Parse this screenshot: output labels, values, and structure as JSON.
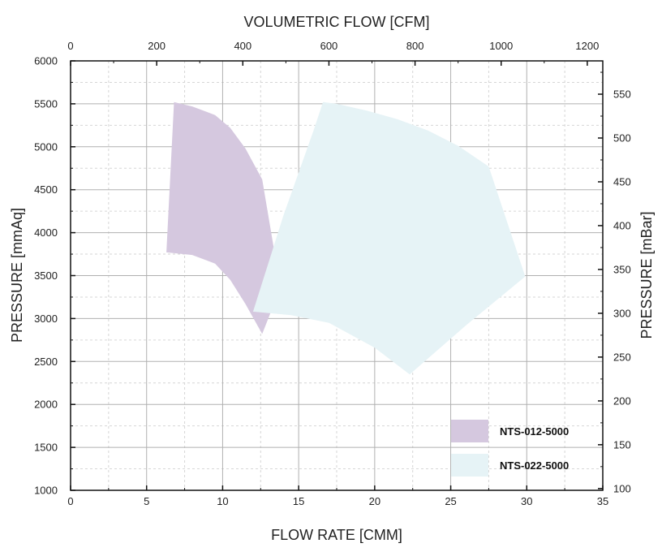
{
  "chart_data": {
    "type": "area",
    "xlabel": "FLOW RATE [CMM]",
    "ylabel": "PRESSURE [mmAq]",
    "x2label": "VOLUMETRIC FLOW [CFM]",
    "y2label": "PRESSURE [mBar]",
    "xlim": [
      0,
      35
    ],
    "ylim": [
      1000,
      6000
    ],
    "x2lim": [
      0,
      1236
    ],
    "y2lim": [
      98,
      588
    ],
    "xticks": [
      "0",
      "5",
      "10",
      "15",
      "20",
      "25",
      "30",
      "35"
    ],
    "yticks": [
      "1000",
      "1500",
      "2000",
      "2500",
      "3000",
      "3500",
      "4000",
      "4500",
      "5000",
      "5500",
      "6000"
    ],
    "x2ticks": [
      "0",
      "200",
      "400",
      "600",
      "800",
      "1000",
      "1200"
    ],
    "y2ticks": [
      "100",
      "150",
      "200",
      "250",
      "300",
      "350",
      "400",
      "450",
      "500",
      "550"
    ],
    "grid": true,
    "legend_position": "bottom-right",
    "series": [
      {
        "name": "NTS-012-5000",
        "color": "#d5c8df",
        "x": [
          6.8,
          8.0,
          9.5,
          10.5,
          11.5,
          12.6,
          13.8,
          12.6,
          11.5,
          10.5,
          9.5,
          8.0,
          6.3
        ],
        "y": [
          5520,
          5470,
          5370,
          5220,
          4980,
          4620,
          3360,
          2820,
          3170,
          3450,
          3640,
          3740,
          3770
        ]
      },
      {
        "name": "NTS-022-5000",
        "color": "#e6f3f6",
        "x": [
          16.6,
          17.5,
          19.5,
          21.5,
          23.5,
          25.5,
          27.5,
          29.9,
          26.0,
          22.3,
          20.0,
          17.0,
          14.5,
          12.0,
          14.0,
          16.0
        ],
        "y": [
          5520,
          5500,
          5420,
          5320,
          5190,
          5010,
          4770,
          3490,
          2920,
          2350,
          2660,
          2950,
          3040,
          3080,
          4200,
          5200
        ]
      }
    ]
  }
}
